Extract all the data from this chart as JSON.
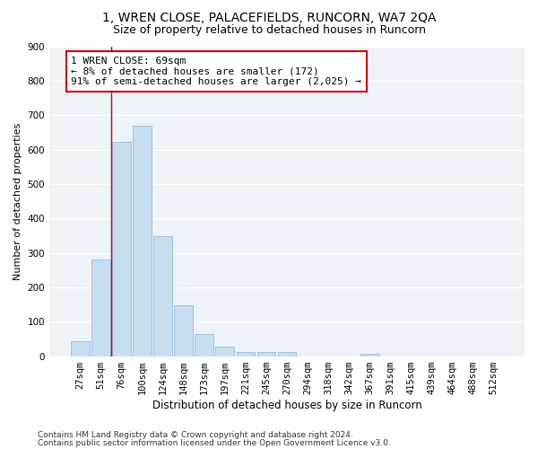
{
  "title1": "1, WREN CLOSE, PALACEFIELDS, RUNCORN, WA7 2QA",
  "title2": "Size of property relative to detached houses in Runcorn",
  "xlabel": "Distribution of detached houses by size in Runcorn",
  "ylabel": "Number of detached properties",
  "bar_color": "#c8ddf0",
  "bar_edge_color": "#8ab4d8",
  "categories": [
    "27sqm",
    "51sqm",
    "76sqm",
    "100sqm",
    "124sqm",
    "148sqm",
    "173sqm",
    "197sqm",
    "221sqm",
    "245sqm",
    "270sqm",
    "294sqm",
    "318sqm",
    "342sqm",
    "367sqm",
    "391sqm",
    "415sqm",
    "439sqm",
    "464sqm",
    "488sqm",
    "512sqm"
  ],
  "values": [
    42,
    280,
    622,
    668,
    348,
    148,
    65,
    28,
    13,
    11,
    11,
    0,
    0,
    0,
    8,
    0,
    0,
    0,
    0,
    0,
    0
  ],
  "ylim": [
    0,
    900
  ],
  "yticks": [
    0,
    100,
    200,
    300,
    400,
    500,
    600,
    700,
    800,
    900
  ],
  "vline_x": 1.5,
  "annotation_line1": "1 WREN CLOSE: 69sqm",
  "annotation_line2": "← 8% of detached houses are smaller (172)",
  "annotation_line3": "91% of semi-detached houses are larger (2,025) →",
  "annotation_box_color": "white",
  "annotation_box_edge": "#cc0000",
  "vline_color": "#cc0000",
  "footnote1": "Contains HM Land Registry data © Crown copyright and database right 2024.",
  "footnote2": "Contains public sector information licensed under the Open Government Licence v3.0.",
  "background_color": "#eef2f9",
  "grid_color": "white",
  "title1_fontsize": 10,
  "title2_fontsize": 9,
  "xlabel_fontsize": 8.5,
  "ylabel_fontsize": 8,
  "tick_fontsize": 7.5,
  "footnote_fontsize": 6.5,
  "annotation_fontsize": 8
}
